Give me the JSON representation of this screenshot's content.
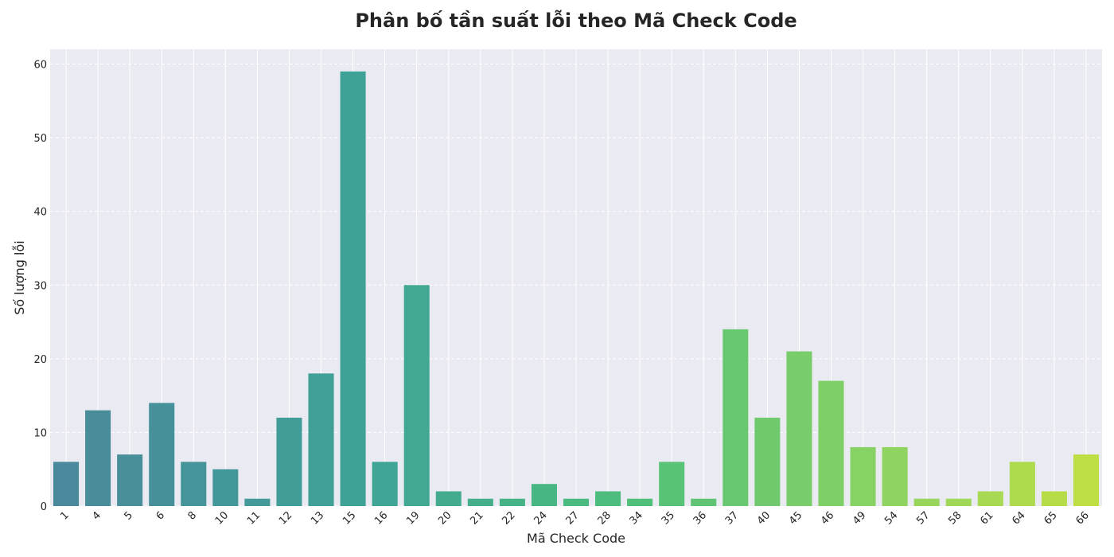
{
  "chart_data": {
    "type": "bar",
    "title": "Phân bố tần suất lỗi theo Mã Check Code",
    "xlabel": "Mã Check Code",
    "ylabel": "Số lượng lỗi",
    "ylim": [
      0,
      62
    ],
    "yticks": [
      0,
      10,
      20,
      30,
      40,
      50,
      60
    ],
    "categories": [
      "1",
      "4",
      "5",
      "6",
      "8",
      "10",
      "11",
      "12",
      "13",
      "15",
      "16",
      "19",
      "20",
      "21",
      "22",
      "24",
      "27",
      "28",
      "34",
      "35",
      "36",
      "37",
      "40",
      "45",
      "46",
      "49",
      "54",
      "57",
      "58",
      "61",
      "64",
      "65",
      "66"
    ],
    "values": [
      6,
      13,
      7,
      14,
      6,
      5,
      1,
      12,
      18,
      59,
      6,
      30,
      2,
      1,
      1,
      3,
      1,
      2,
      1,
      6,
      1,
      24,
      12,
      21,
      17,
      8,
      8,
      1,
      1,
      2,
      6,
      2,
      7
    ],
    "grid": true,
    "palette": "viridis",
    "background_color": "#eaeaf2"
  }
}
